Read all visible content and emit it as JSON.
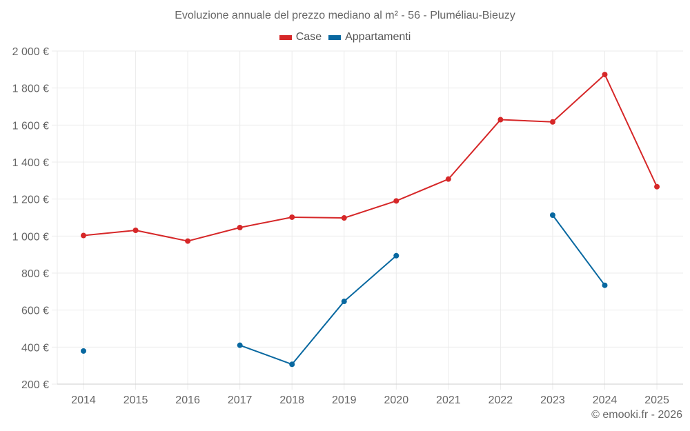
{
  "chart_data": {
    "type": "line",
    "title": "Evoluzione annuale del prezzo mediano al m² - 56 - Pluméliau-Bieuzy",
    "xlabel": "",
    "ylabel": "",
    "categories": [
      "2014",
      "2015",
      "2016",
      "2017",
      "2018",
      "2019",
      "2020",
      "2021",
      "2022",
      "2023",
      "2024",
      "2025"
    ],
    "ylim": [
      200,
      2000
    ],
    "yticks": [
      200,
      400,
      600,
      800,
      1000,
      1200,
      1400,
      1600,
      1800,
      2000
    ],
    "ytick_labels": [
      "200 €",
      "400 €",
      "600 €",
      "800 €",
      "1 000 €",
      "1 200 €",
      "1 400 €",
      "1 600 €",
      "1 800 €",
      "2 000 €"
    ],
    "grid": true,
    "legend_position": "top-center",
    "series": [
      {
        "name": "Case",
        "color": "#d62728",
        "values": [
          1003,
          1031,
          973,
          1046,
          1102,
          1098,
          1190,
          1308,
          1629,
          1617,
          1873,
          1267
        ]
      },
      {
        "name": "Appartamenti",
        "color": "#0868a0",
        "values": [
          379,
          null,
          null,
          410,
          307,
          647,
          894,
          null,
          null,
          1113,
          734,
          null
        ]
      }
    ]
  },
  "credit": "© emooki.fr - 2026"
}
